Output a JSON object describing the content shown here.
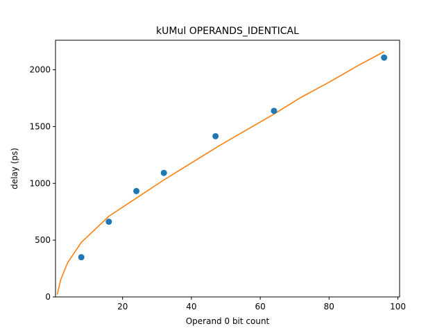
{
  "chart_data": {
    "type": "scatter",
    "title": "kUMul OPERANDS_IDENTICAL",
    "xlabel": "Operand 0 bit count",
    "ylabel": "delay (ps)",
    "xlim": [
      0.5,
      100.5
    ],
    "ylim": [
      0,
      2260
    ],
    "xticks": [
      20,
      40,
      60,
      80,
      100
    ],
    "yticks": [
      0,
      500,
      1000,
      1500,
      2000
    ],
    "grid": false,
    "series": [
      {
        "type": "scatter",
        "color": "#1f77b4",
        "x": [
          8,
          16,
          24,
          32,
          47,
          64,
          96
        ],
        "y": [
          350,
          662,
          932,
          1092,
          1415,
          1638,
          2107
        ]
      },
      {
        "type": "line",
        "color": "#ff7f0e",
        "x": [
          1,
          2,
          4,
          8,
          16,
          24,
          32,
          40,
          48,
          56,
          64,
          72,
          80,
          88,
          96
        ],
        "y": [
          20,
          150,
          300,
          480,
          710,
          870,
          1030,
          1180,
          1330,
          1470,
          1610,
          1760,
          1890,
          2030,
          2160
        ]
      }
    ]
  }
}
